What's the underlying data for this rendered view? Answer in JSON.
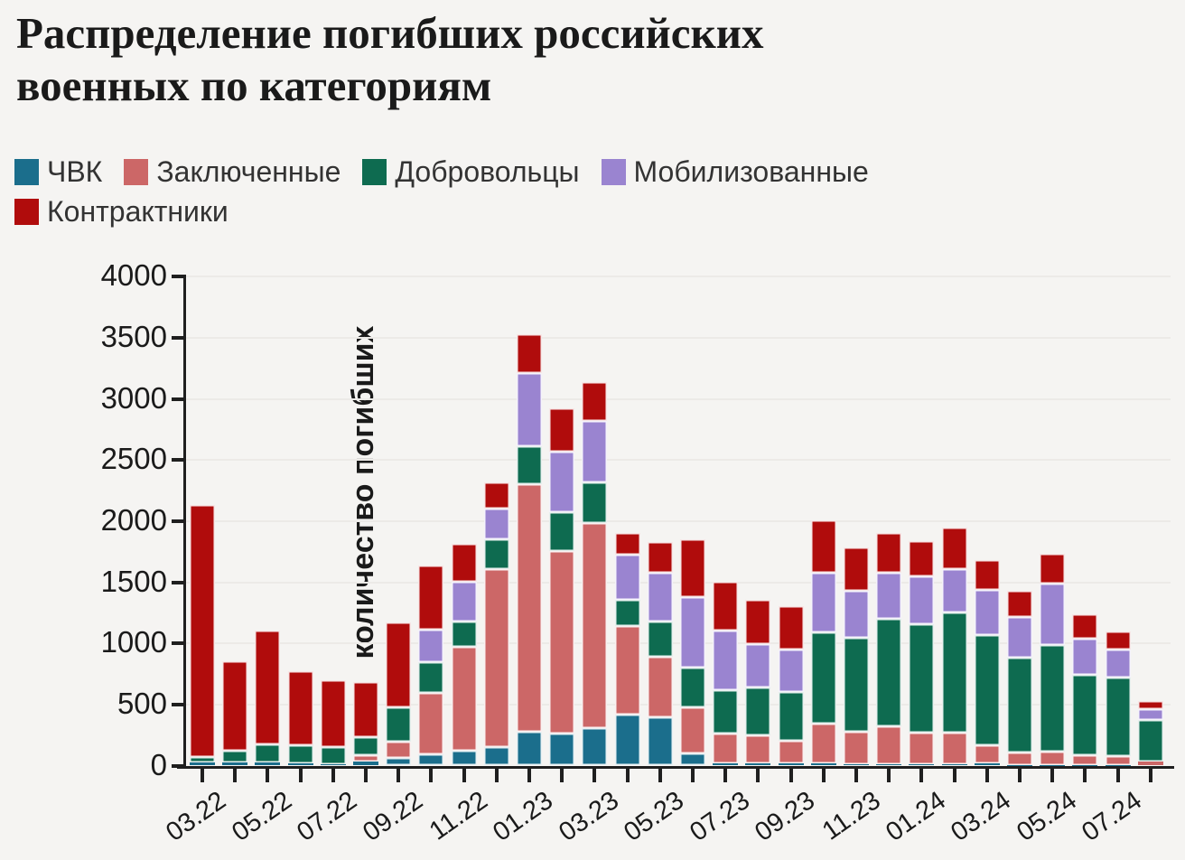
{
  "title_lines": [
    "Распределение погибших российских",
    "военных по категориям"
  ],
  "legend_rows": [
    [
      {
        "label": "ЧВК",
        "color": "#1b6e8c"
      },
      {
        "label": "Заключенные",
        "color": "#cc6767"
      },
      {
        "label": "Добровольцы",
        "color": "#0e6b50"
      },
      {
        "label": "Мобилизованные",
        "color": "#9a84d0"
      }
    ],
    [
      {
        "label": "Контрактники",
        "color": "#b00c0c"
      }
    ]
  ],
  "chart_data": {
    "type": "bar",
    "stacked": true,
    "title": "Распределение погибших российских военных по категориям",
    "xlabel": "",
    "ylabel": "количество погибших",
    "ylim": [
      0,
      4000
    ],
    "ytick_step": 500,
    "grid": true,
    "legend_position": "top",
    "categories": [
      "03.22",
      "04.22",
      "05.22",
      "06.22",
      "07.22",
      "08.22",
      "09.22",
      "10.22",
      "11.22",
      "12.22",
      "01.23",
      "02.23",
      "03.23",
      "04.23",
      "05.23",
      "06.23",
      "07.23",
      "08.23",
      "09.23",
      "10.23",
      "11.23",
      "12.23",
      "01.24",
      "02.24",
      "03.24",
      "04.24",
      "05.24",
      "06.24",
      "07.24",
      "08.24"
    ],
    "xtick_label_every": 2,
    "series": [
      {
        "name": "ЧВК",
        "color": "#1b6e8c",
        "values": [
          25,
          25,
          25,
          15,
          10,
          30,
          65,
          90,
          120,
          155,
          275,
          265,
          310,
          415,
          395,
          100,
          20,
          15,
          15,
          15,
          10,
          10,
          10,
          10,
          15,
          5,
          5,
          5,
          5,
          0
        ]
      },
      {
        "name": "Заключенные",
        "color": "#cc6767",
        "values": [
          0,
          0,
          0,
          0,
          0,
          55,
          130,
          505,
          855,
          1450,
          2030,
          1490,
          1675,
          730,
          495,
          380,
          245,
          230,
          185,
          325,
          270,
          315,
          260,
          260,
          150,
          105,
          110,
          80,
          70,
          35
        ]
      },
      {
        "name": "Добровольцы",
        "color": "#0e6b50",
        "values": [
          45,
          95,
          150,
          150,
          145,
          150,
          285,
          250,
          205,
          245,
          310,
          315,
          335,
          210,
          290,
          325,
          350,
          395,
          400,
          750,
          765,
          875,
          890,
          985,
          905,
          770,
          870,
          660,
          645,
          340
        ]
      },
      {
        "name": "Мобилизованные",
        "color": "#9a84d0",
        "values": [
          0,
          0,
          0,
          0,
          0,
          0,
          0,
          265,
          325,
          255,
          600,
          495,
          500,
          370,
          395,
          570,
          490,
          355,
          350,
          490,
          385,
          375,
          385,
          355,
          370,
          335,
          505,
          290,
          230,
          85
        ]
      },
      {
        "name": "Контрактники",
        "color": "#b00c0c",
        "values": [
          2060,
          735,
          930,
          610,
          540,
          445,
          690,
          530,
          310,
          210,
          315,
          355,
          315,
          180,
          255,
          475,
          400,
          360,
          355,
          430,
          355,
          325,
          290,
          340,
          240,
          215,
          245,
          200,
          150,
          65
        ]
      }
    ]
  }
}
